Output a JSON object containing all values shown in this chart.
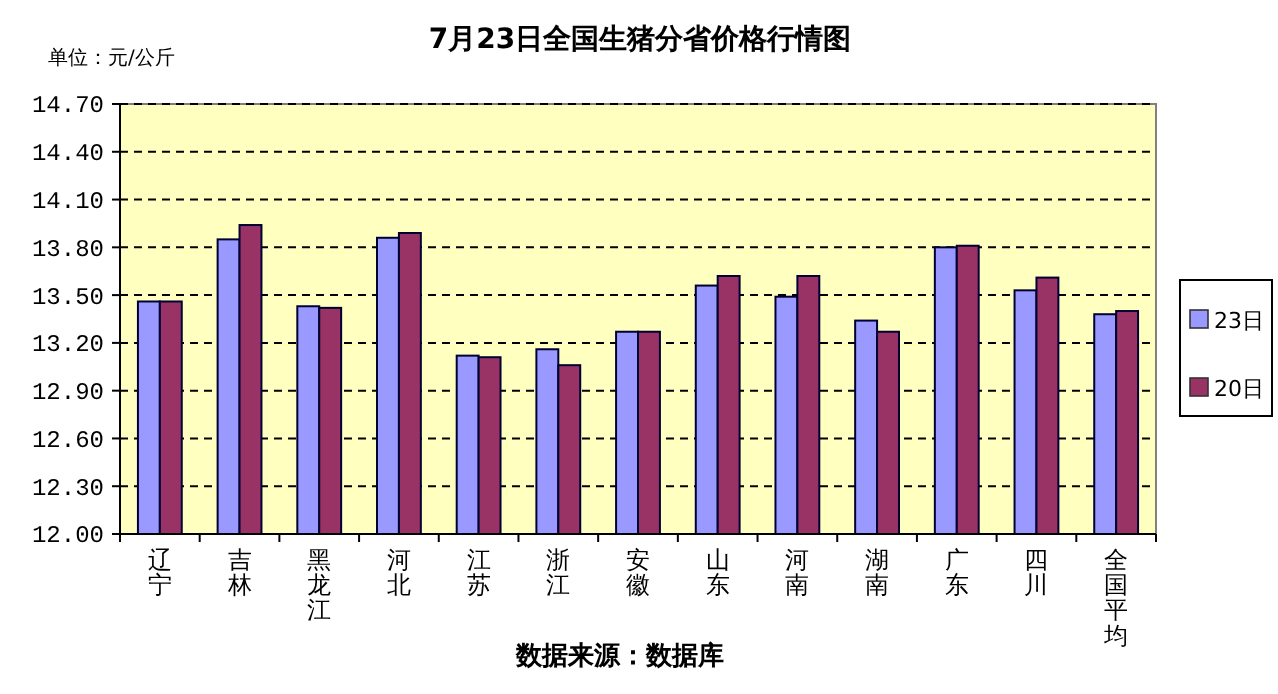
{
  "chart_data": {
    "type": "bar",
    "title": "7月23日全国生猪分省价格行情图",
    "ylabel": "单位：元/公斤",
    "annotations": [
      "数据来源：数据库"
    ],
    "categories": [
      "辽宁",
      "吉林",
      "黑龙江",
      "河北",
      "江苏",
      "浙江",
      "安徽",
      "山东",
      "河南",
      "湖南",
      "广东",
      "四川",
      "全国平均"
    ],
    "series": [
      {
        "name": "23日",
        "color": "#9999ff",
        "values": [
          13.46,
          13.85,
          13.43,
          13.86,
          13.12,
          13.16,
          13.27,
          13.56,
          13.49,
          13.34,
          13.8,
          13.53,
          13.38
        ]
      },
      {
        "name": "20日",
        "color": "#993366",
        "values": [
          13.46,
          13.94,
          13.42,
          13.89,
          13.11,
          13.06,
          13.27,
          13.62,
          13.62,
          13.27,
          13.81,
          13.61,
          13.4
        ]
      }
    ],
    "ylim": [
      12,
      14.7
    ],
    "yticks": [
      {
        "value": 12,
        "label": "12.00"
      },
      {
        "value": 12.3,
        "label": "12.30"
      },
      {
        "value": 12.6,
        "label": "12.60"
      },
      {
        "value": 12.9,
        "label": "12.90"
      },
      {
        "value": 13.2,
        "label": "13.20"
      },
      {
        "value": 13.5,
        "label": "13.50"
      },
      {
        "value": 13.8,
        "label": "13.80"
      },
      {
        "value": 14.1,
        "label": "14.10"
      },
      {
        "value": 14.4,
        "label": "14.40"
      },
      {
        "value": 14.7,
        "label": "14.70"
      }
    ],
    "grid": "y",
    "legend": "right",
    "marker": "square"
  }
}
